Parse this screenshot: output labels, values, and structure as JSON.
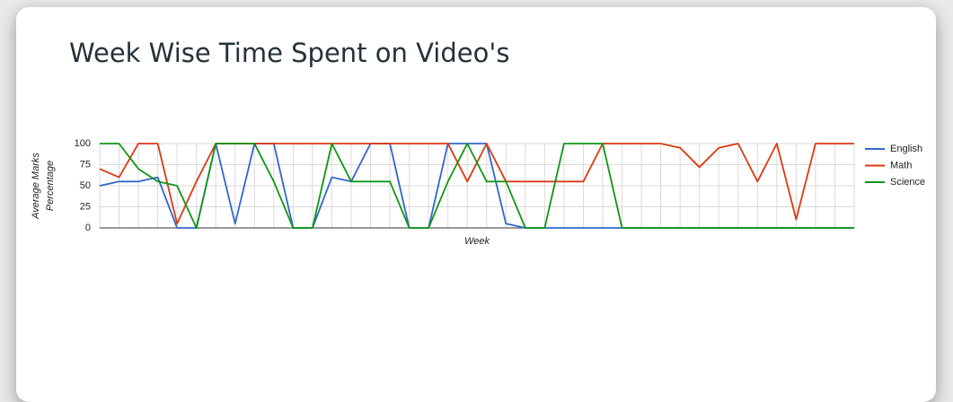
{
  "chart_data": {
    "type": "line",
    "title": "Week Wise Time Spent on Video's",
    "xlabel": "Week",
    "ylabel": [
      "Average Marks",
      "Percentage"
    ],
    "categories": [
      null,
      null,
      null,
      null,
      null,
      null,
      null,
      null,
      null,
      null,
      null,
      null,
      null,
      null,
      null,
      null,
      null,
      null,
      null,
      null,
      null,
      null,
      null,
      null,
      null,
      null,
      null,
      null,
      null,
      null,
      null,
      null,
      null,
      null,
      null,
      null,
      null,
      null,
      null,
      null
    ],
    "series": [
      {
        "name": "English",
        "color": "#3366cc",
        "values": [
          50,
          55,
          55,
          60,
          0,
          0,
          100,
          5,
          100,
          100,
          0,
          0,
          60,
          55,
          100,
          100,
          0,
          0,
          100,
          100,
          100,
          5,
          0,
          0,
          0,
          0,
          0,
          0,
          0,
          0,
          0,
          0,
          0,
          0,
          0,
          0,
          0,
          0,
          0,
          0
        ]
      },
      {
        "name": "Math",
        "color": "#dc3912",
        "values": [
          70,
          60,
          100,
          100,
          5,
          55,
          100,
          100,
          100,
          100,
          100,
          100,
          100,
          100,
          100,
          100,
          100,
          100,
          100,
          55,
          100,
          55,
          55,
          55,
          55,
          55,
          100,
          100,
          100,
          100,
          95,
          72,
          95,
          100,
          55,
          100,
          10,
          100,
          100,
          100
        ]
      },
      {
        "name": "Science",
        "color": "#109618",
        "values": [
          100,
          100,
          70,
          55,
          50,
          0,
          100,
          100,
          100,
          55,
          0,
          0,
          100,
          55,
          55,
          55,
          0,
          0,
          55,
          100,
          55,
          55,
          0,
          0,
          100,
          100,
          100,
          0,
          0,
          0,
          0,
          0,
          0,
          0,
          0,
          0,
          0,
          0,
          0,
          0
        ]
      }
    ],
    "ylim": [
      0,
      100
    ],
    "yticks": [
      0,
      25,
      50,
      75,
      100
    ],
    "grid": true,
    "legend": "right"
  }
}
